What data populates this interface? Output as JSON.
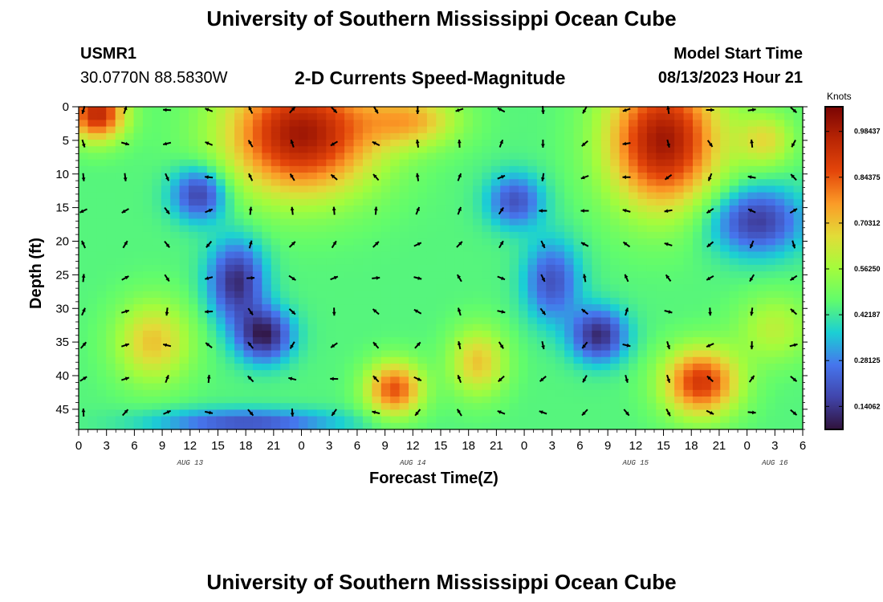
{
  "header": {
    "title": "University of Southern Mississippi Ocean Cube",
    "station_id": "USMR1",
    "coordinates": "30.0770N  88.5830W",
    "plot_title": "2-D Currents Speed-Magnitude",
    "model_start_label": "Model Start Time",
    "model_start_value": "08/13/2023 Hour 21"
  },
  "footer": {
    "title": "University of Southern Mississippi Ocean Cube"
  },
  "chart_data": {
    "type": "heatmap",
    "title": "2-D Currents Speed-Magnitude",
    "xlabel": "Forecast Time(Z)",
    "ylabel": "Depth (ft)",
    "x_tick_labels": [
      "0",
      "3",
      "6",
      "9",
      "12",
      "15",
      "18",
      "21",
      "0",
      "3",
      "6",
      "9",
      "12",
      "15",
      "18",
      "21",
      "0",
      "3",
      "6",
      "9",
      "12",
      "15",
      "18",
      "21",
      "0",
      "3",
      "6"
    ],
    "x_range_hours": [
      0,
      78
    ],
    "date_labels": [
      {
        "text": "AUG 13",
        "hour": 12
      },
      {
        "text": "AUG 14",
        "hour": 36
      },
      {
        "text": "AUG 15",
        "hour": 60
      },
      {
        "text": "AUG 16",
        "hour": 75
      }
    ],
    "y_tick_labels": [
      "0",
      "5",
      "10",
      "15",
      "20",
      "25",
      "30",
      "35",
      "40",
      "45"
    ],
    "y_range_ft": [
      0,
      48
    ],
    "colorbar": {
      "unit": "Knots",
      "min": 0.07,
      "max": 1.06,
      "tick_values": [
        0.98437,
        0.84375,
        0.70312,
        0.5625,
        0.42187,
        0.28125,
        0.14062
      ],
      "tick_labels": [
        "0.98437",
        "0.84375",
        "0.70312",
        "0.56250",
        "0.42187",
        "0.28125",
        "0.14062"
      ]
    },
    "features": [
      {
        "name": "surface-high-early",
        "hour": 2,
        "depth": 1,
        "speed": 0.95,
        "sh": 3,
        "sd": 4
      },
      {
        "name": "surface-high-day13",
        "hour": 24,
        "depth": 4,
        "speed": 1.0,
        "sh": 8,
        "sd": 9
      },
      {
        "name": "surface-high-day14",
        "hour": 36,
        "depth": 2,
        "speed": 0.7,
        "sh": 5,
        "sd": 4
      },
      {
        "name": "surface-high-day15",
        "hour": 63,
        "depth": 5,
        "speed": 1.0,
        "sh": 6,
        "sd": 10
      },
      {
        "name": "surface-high-day16",
        "hour": 74,
        "depth": 5,
        "speed": 0.65,
        "sh": 3,
        "sd": 4
      },
      {
        "name": "mid-high-left",
        "hour": 8,
        "depth": 35,
        "speed": 0.7,
        "sh": 4,
        "sd": 6
      },
      {
        "name": "deep-high-aug14-a",
        "hour": 34,
        "depth": 42,
        "speed": 0.85,
        "sh": 3,
        "sd": 4
      },
      {
        "name": "deep-high-aug14-b",
        "hour": 43,
        "depth": 38,
        "speed": 0.7,
        "sh": 3,
        "sd": 5
      },
      {
        "name": "deep-high-aug15",
        "hour": 67,
        "depth": 41,
        "speed": 0.9,
        "sh": 4,
        "sd": 5
      },
      {
        "name": "mid-high-right",
        "hour": 75,
        "depth": 33,
        "speed": 0.6,
        "sh": 4,
        "sd": 5
      },
      {
        "name": "low-diagonal-1",
        "hour": 13,
        "depth": 13,
        "speed": 0.15,
        "sh": 3,
        "sd": 4
      },
      {
        "name": "low-diagonal-2",
        "hour": 17,
        "depth": 26,
        "speed": 0.12,
        "sh": 3,
        "sd": 6
      },
      {
        "name": "low-diagonal-3",
        "hour": 20,
        "depth": 34,
        "speed": 0.1,
        "sh": 3,
        "sd": 4
      },
      {
        "name": "low-aug14-top",
        "hour": 47,
        "depth": 14,
        "speed": 0.2,
        "sh": 3,
        "sd": 4
      },
      {
        "name": "low-aug14-mid",
        "hour": 51,
        "depth": 26,
        "speed": 0.2,
        "sh": 3,
        "sd": 6
      },
      {
        "name": "low-aug15-mid",
        "hour": 56,
        "depth": 34,
        "speed": 0.12,
        "sh": 3,
        "sd": 4
      },
      {
        "name": "low-right-top",
        "hour": 73,
        "depth": 17,
        "speed": 0.15,
        "sh": 5,
        "sd": 5
      },
      {
        "name": "low-bottom",
        "hour": 18,
        "depth": 47,
        "speed": 0.2,
        "sh": 10,
        "sd": 2
      }
    ],
    "background_speed": 0.45,
    "arrow_columns_hours": [
      0,
      4.5,
      9,
      13.5,
      18,
      22.5,
      27,
      31.5,
      36,
      40.5,
      45,
      49.5,
      54,
      58.5,
      63,
      67.5,
      72,
      76.5
    ],
    "arrow_rows_ft": [
      0,
      5,
      10,
      15,
      20,
      25,
      30,
      35,
      40,
      45
    ]
  }
}
